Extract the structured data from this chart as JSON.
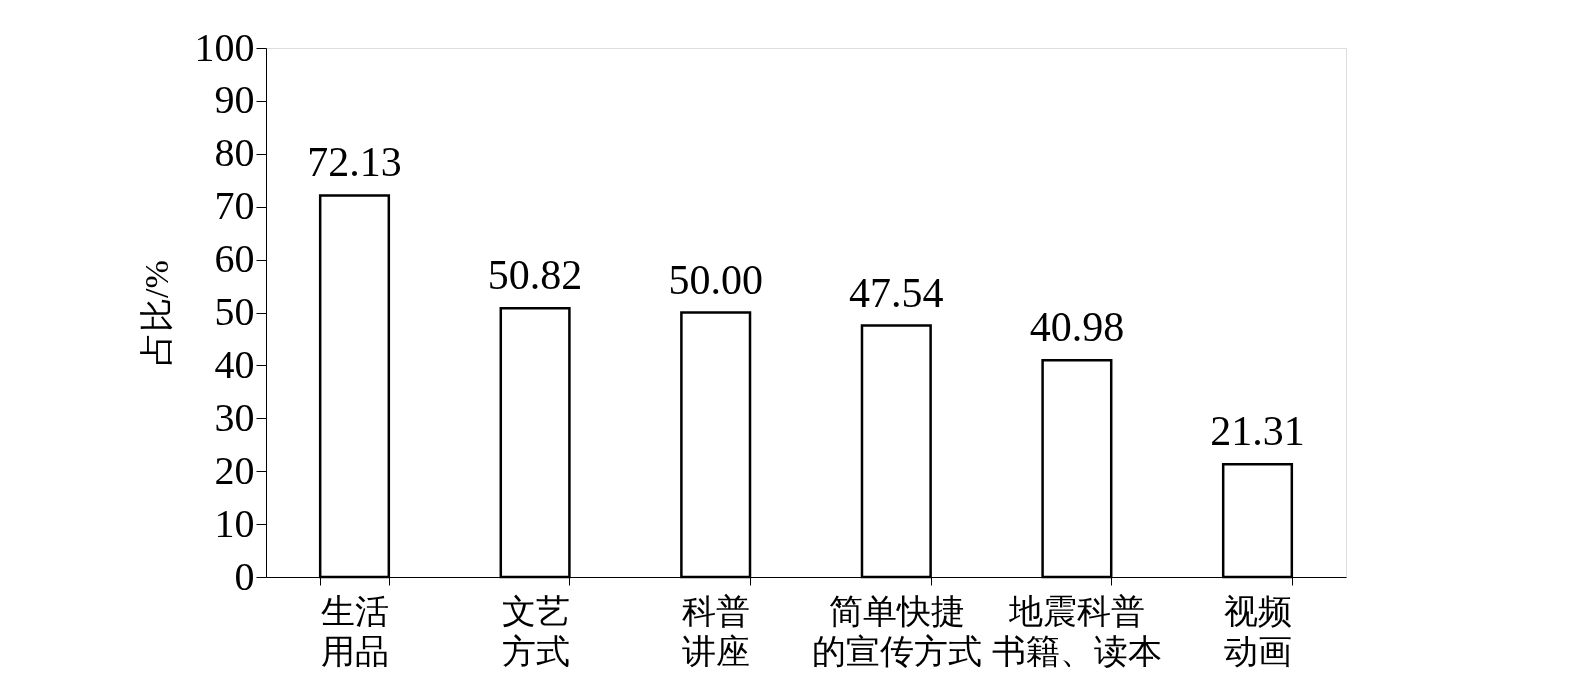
{
  "chart_data": {
    "type": "bar",
    "ylabel": "占比/%",
    "categories": [
      "生活用品",
      "文艺方式",
      "科普讲座",
      "简单快捷的宣传方式",
      "地震科普书籍、读本",
      "视频动画"
    ],
    "values": [
      72.13,
      50.82,
      50.0,
      47.54,
      40.98,
      21.31
    ],
    "value_labels": [
      "72.13",
      "50.82",
      "50.00",
      "47.54",
      "40.98",
      "21.31"
    ],
    "color": "#ffffff",
    "ylim": [
      0,
      100
    ],
    "yticks": [
      0,
      10,
      20,
      30,
      40,
      50,
      60,
      70,
      80,
      90,
      100
    ],
    "grid": false
  }
}
